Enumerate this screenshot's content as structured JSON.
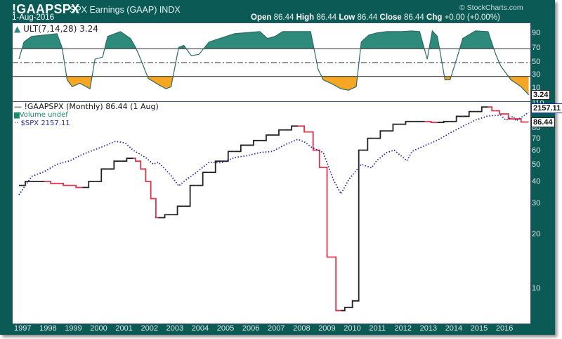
{
  "header": {
    "symbol": "!GAAPSPX",
    "name": "SPX Earnings (GAAP) INDX",
    "date": "1-Aug-2016",
    "watermark": "© StockCharts.com",
    "open_label": "Open",
    "open": "86.44",
    "high_label": "High",
    "high": "86.44",
    "low_label": "Low",
    "low": "86.44",
    "close_label": "Close",
    "close": "86.44",
    "chg_label": "Chg",
    "chg": "+0.00 (+0.00%)"
  },
  "ult_panel": {
    "label": "ULT(7,14,28) 3.24",
    "current_tag": "3.24",
    "axis_ticks": [
      "90",
      "70",
      "50",
      "30",
      "10"
    ]
  },
  "main_panel": {
    "legend": {
      "series1": "!GAAPSPX (Monthly) 86.44 (1 Aug)",
      "series2": "Volume undef",
      "series3": "$SPX 2157.11"
    },
    "tag_spx": "2157.11",
    "tag_earnings": "86.44",
    "axis_ticks": [
      "110",
      "80",
      "70",
      "60",
      "50",
      "40",
      "30",
      "20",
      "10"
    ]
  },
  "x_axis": {
    "years": [
      "1997",
      "1998",
      "1999",
      "2000",
      "2001",
      "2002",
      "2003",
      "2004",
      "2005",
      "2006",
      "2007",
      "2008",
      "2009",
      "2010",
      "2011",
      "2012",
      "2013",
      "2014",
      "2015",
      "2016"
    ]
  },
  "colors": {
    "frame": "#0b5a56",
    "ult_fill_high": "#2e8a7a",
    "ult_fill_low": "#f5a623",
    "earnings_up": "#222222",
    "earnings_down": "#e0304a",
    "spx": "#2a2aa8"
  },
  "chart_data": [
    {
      "type": "area",
      "title": "ULT(7,14,28) 3.24",
      "ylim": [
        0,
        100
      ],
      "reference_lines": [
        70,
        50,
        30
      ],
      "x": [
        1996.5,
        1996.7,
        1997.0,
        1997.5,
        1998.0,
        1998.2,
        1998.4,
        1998.6,
        1998.9,
        1999.3,
        1999.5,
        1999.8,
        2000.0,
        2000.5,
        2000.9,
        2001.1,
        2001.3,
        2001.6,
        2002.0,
        2002.3,
        2002.5,
        2002.8,
        2003.0,
        2003.3,
        2003.6,
        2004.0,
        2005.0,
        2006.0,
        2006.3,
        2006.6,
        2006.9,
        2007.5,
        2008.0,
        2008.3,
        2008.5,
        2008.8,
        2009.2,
        2009.5,
        2009.8,
        2010.0,
        2010.3,
        2010.6,
        2011.0,
        2011.6,
        2012.0,
        2012.3,
        2012.6,
        2012.8,
        2013.0,
        2013.3,
        2013.5,
        2013.8,
        2014.0,
        2014.5,
        2015.0,
        2015.3,
        2015.5,
        2015.9,
        2016.3,
        2016.6
      ],
      "values": [
        55,
        80,
        88,
        90,
        92,
        72,
        25,
        15,
        20,
        12,
        55,
        58,
        88,
        95,
        85,
        72,
        55,
        27,
        18,
        12,
        15,
        72,
        75,
        60,
        62,
        80,
        92,
        95,
        85,
        88,
        95,
        95,
        95,
        40,
        25,
        20,
        12,
        10,
        15,
        80,
        90,
        93,
        95,
        95,
        96,
        95,
        55,
        96,
        88,
        25,
        25,
        60,
        85,
        96,
        95,
        62,
        45,
        25,
        15,
        3.24
      ]
    },
    {
      "type": "line",
      "title": "!GAAPSPX (Monthly) vs $SPX",
      "yscale": "log",
      "ylim": [
        8.5,
        110
      ],
      "series": [
        {
          "name": "!GAAPSPX (Monthly)",
          "x": [
            1996.5,
            1997.0,
            1997.5,
            1998.0,
            1998.5,
            1999.0,
            1999.5,
            2000.0,
            2000.5,
            2001.0,
            2001.2,
            2001.4,
            2001.6,
            2001.8,
            2002.0,
            2002.5,
            2003.0,
            2003.5,
            2004.0,
            2004.5,
            2005.0,
            2005.5,
            2006.0,
            2006.5,
            2007.0,
            2007.5,
            2008.0,
            2008.2,
            2008.5,
            2008.8,
            2009.2,
            2009.5,
            2009.8,
            2010.0,
            2010.5,
            2011.0,
            2011.5,
            2012.0,
            2012.5,
            2013.0,
            2013.5,
            2014.0,
            2014.5,
            2015.0,
            2015.3,
            2015.6,
            2016.0,
            2016.6
          ],
          "values": [
            38,
            40,
            40,
            39,
            38,
            37,
            40,
            47,
            52,
            54,
            52,
            47,
            40,
            32,
            25,
            26,
            29,
            38,
            45,
            52,
            59,
            64,
            68,
            73,
            78,
            82,
            76,
            60,
            48,
            15,
            7.5,
            7.8,
            8.5,
            60,
            70,
            77,
            84,
            87,
            87,
            86,
            87,
            93,
            99,
            105,
            100,
            96,
            90,
            86.44
          ]
        },
        {
          "name": "$SPX",
          "x": [
            1996.5,
            1997.0,
            1997.5,
            1998.0,
            1998.5,
            1999.0,
            1999.5,
            2000.0,
            2000.3,
            2000.7,
            2001.0,
            2001.5,
            2001.8,
            2002.0,
            2002.5,
            2002.8,
            2003.0,
            2003.5,
            2004.0,
            2004.5,
            2005.0,
            2005.5,
            2006.0,
            2006.5,
            2007.0,
            2007.5,
            2007.8,
            2008.0,
            2008.5,
            2008.9,
            2009.2,
            2009.5,
            2010.0,
            2010.4,
            2010.6,
            2011.0,
            2011.3,
            2011.8,
            2012.0,
            2012.5,
            2013.0,
            2013.5,
            2014.0,
            2014.5,
            2015.0,
            2015.5,
            2015.7,
            2016.0,
            2016.1,
            2016.6
          ],
          "values": [
            740,
            940,
            1000,
            1100,
            1150,
            1250,
            1330,
            1420,
            1480,
            1450,
            1320,
            1200,
            1100,
            1130,
            950,
            830,
            880,
            990,
            1130,
            1120,
            1200,
            1230,
            1280,
            1300,
            1420,
            1520,
            1460,
            1380,
            1280,
            900,
            750,
            900,
            1100,
            1050,
            1150,
            1280,
            1320,
            1150,
            1300,
            1400,
            1500,
            1650,
            1800,
            1950,
            2060,
            2080,
            1950,
            2050,
            1930,
            2157.11
          ]
        }
      ],
      "x_tick_labels": [
        "1997",
        "1998",
        "1999",
        "2000",
        "2001",
        "2002",
        "2003",
        "2004",
        "2005",
        "2006",
        "2007",
        "2008",
        "2009",
        "2010",
        "2011",
        "2012",
        "2013",
        "2014",
        "2015",
        "2016"
      ],
      "y_tick_labels": [
        "10",
        "20",
        "30",
        "40",
        "50",
        "60",
        "70",
        "80",
        "110"
      ]
    }
  ]
}
